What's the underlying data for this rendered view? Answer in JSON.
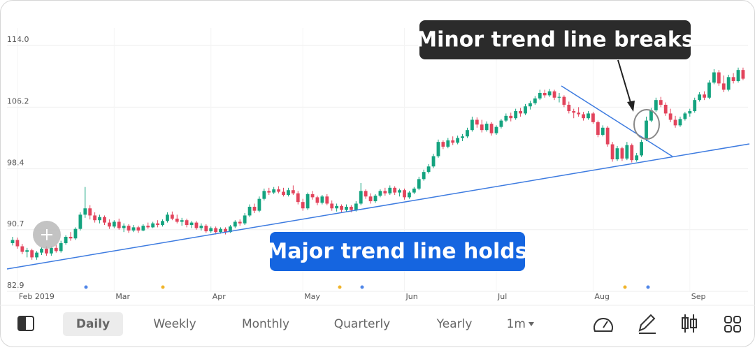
{
  "chart_data": {
    "type": "candlestick",
    "annotations": [
      "Minor trend line breaks",
      "Major trend line holds"
    ],
    "ylim": [
      82.2,
      117.1
    ],
    "yticks": [
      114.0,
      106.2,
      98.4,
      90.7,
      82.9
    ],
    "grid": true,
    "up_color": "#14a37f",
    "down_color": "#e2445c",
    "categories": [
      null,
      "Feb 2019",
      null,
      null,
      null,
      null,
      null,
      null,
      null,
      null,
      null,
      null,
      null,
      null,
      null,
      null,
      null,
      null,
      null,
      null,
      null,
      "Mar",
      null,
      null,
      null,
      null,
      null,
      null,
      null,
      null,
      null,
      null,
      null,
      null,
      null,
      null,
      null,
      null,
      null,
      null,
      null,
      "Apr",
      null,
      null,
      null,
      null,
      null,
      null,
      null,
      null,
      null,
      null,
      null,
      null,
      null,
      null,
      null,
      null,
      null,
      null,
      "May",
      null,
      null,
      null,
      null,
      null,
      null,
      null,
      null,
      null,
      null,
      null,
      null,
      null,
      null,
      null,
      null,
      null,
      null,
      null,
      null,
      "Jun",
      null,
      null,
      null,
      null,
      null,
      null,
      null,
      null,
      null,
      null,
      null,
      null,
      null,
      null,
      null,
      null,
      null,
      null,
      "Jul",
      null,
      null,
      null,
      null,
      null,
      null,
      null,
      null,
      null,
      null,
      null,
      null,
      null,
      null,
      null,
      null,
      null,
      null,
      null,
      "Aug",
      null,
      null,
      null,
      null,
      null,
      null,
      null,
      null,
      null,
      null,
      null,
      null,
      null,
      null,
      null,
      null,
      null,
      null,
      null,
      "Sep",
      null,
      null,
      null,
      null,
      null,
      null,
      null,
      null,
      null,
      null
    ],
    "ohlc": [
      [
        89.0,
        89.8,
        88.7,
        89.4
      ],
      [
        89.4,
        89.7,
        88.3,
        88.6
      ],
      [
        88.6,
        88.9,
        87.6,
        87.9
      ],
      [
        87.9,
        88.4,
        87.2,
        88.1
      ],
      [
        88.1,
        88.3,
        86.9,
        87.2
      ],
      [
        87.2,
        88.0,
        86.9,
        87.8
      ],
      [
        87.8,
        88.5,
        87.5,
        88.3
      ],
      [
        88.3,
        88.6,
        87.4,
        87.7
      ],
      [
        87.7,
        88.6,
        87.4,
        88.4
      ],
      [
        88.4,
        88.8,
        87.8,
        88.0
      ],
      [
        88.0,
        89.3,
        87.8,
        89.0
      ],
      [
        89.0,
        90.0,
        88.8,
        89.8
      ],
      [
        89.8,
        90.4,
        89.3,
        89.6
      ],
      [
        89.6,
        91.0,
        89.4,
        90.8
      ],
      [
        90.8,
        92.9,
        90.6,
        92.6
      ],
      [
        92.6,
        96.1,
        92.2,
        93.4
      ],
      [
        93.4,
        93.8,
        92.0,
        92.5
      ],
      [
        92.5,
        92.9,
        91.6,
        91.9
      ],
      [
        91.9,
        92.6,
        91.5,
        92.3
      ],
      [
        92.3,
        92.5,
        91.3,
        91.6
      ],
      [
        91.6,
        92.0,
        90.8,
        91.1
      ],
      [
        91.1,
        91.9,
        90.9,
        91.7
      ],
      [
        91.7,
        92.1,
        90.7,
        90.9
      ],
      [
        90.9,
        91.5,
        90.4,
        91.2
      ],
      [
        91.2,
        91.4,
        90.3,
        90.6
      ],
      [
        90.6,
        91.3,
        90.4,
        91.0
      ],
      [
        91.0,
        91.2,
        90.3,
        90.6
      ],
      [
        90.6,
        91.4,
        90.5,
        91.2
      ],
      [
        91.2,
        91.6,
        90.8,
        91.0
      ],
      [
        91.0,
        91.7,
        90.9,
        91.5
      ],
      [
        91.5,
        91.9,
        91.0,
        91.3
      ],
      [
        91.3,
        92.0,
        91.1,
        91.8
      ],
      [
        91.8,
        92.9,
        91.6,
        92.6
      ],
      [
        92.6,
        93.0,
        91.9,
        92.1
      ],
      [
        92.1,
        92.6,
        91.5,
        91.7
      ],
      [
        91.7,
        92.2,
        91.2,
        91.9
      ],
      [
        91.9,
        92.1,
        91.0,
        91.3
      ],
      [
        91.3,
        91.8,
        90.9,
        91.6
      ],
      [
        91.6,
        91.8,
        90.7,
        90.9
      ],
      [
        90.9,
        91.5,
        90.6,
        91.2
      ],
      [
        91.2,
        91.4,
        90.3,
        90.5
      ],
      [
        90.5,
        91.1,
        90.3,
        90.9
      ],
      [
        90.9,
        91.1,
        90.1,
        90.4
      ],
      [
        90.4,
        91.0,
        90.2,
        90.8
      ],
      [
        90.8,
        91.0,
        90.1,
        90.4
      ],
      [
        90.4,
        91.3,
        90.3,
        91.1
      ],
      [
        91.1,
        91.9,
        90.9,
        91.7
      ],
      [
        91.7,
        92.0,
        91.2,
        91.5
      ],
      [
        91.5,
        92.8,
        91.3,
        92.5
      ],
      [
        92.5,
        93.9,
        92.3,
        93.6
      ],
      [
        93.6,
        94.0,
        92.8,
        93.1
      ],
      [
        93.1,
        94.9,
        92.9,
        94.6
      ],
      [
        94.6,
        95.9,
        94.4,
        95.6
      ],
      [
        95.6,
        96.0,
        95.1,
        95.4
      ],
      [
        95.4,
        96.1,
        95.2,
        95.8
      ],
      [
        95.8,
        96.2,
        95.3,
        95.5
      ],
      [
        95.5,
        96.0,
        94.9,
        95.1
      ],
      [
        95.1,
        96.0,
        94.9,
        95.7
      ],
      [
        95.7,
        96.3,
        95.1,
        95.3
      ],
      [
        95.3,
        95.6,
        93.9,
        94.2
      ],
      [
        94.2,
        94.6,
        93.1,
        93.4
      ],
      [
        93.4,
        95.4,
        93.2,
        95.2
      ],
      [
        95.2,
        95.6,
        94.5,
        94.8
      ],
      [
        94.8,
        95.0,
        93.8,
        94.1
      ],
      [
        94.1,
        95.1,
        93.9,
        94.9
      ],
      [
        94.9,
        95.2,
        93.8,
        94.0
      ],
      [
        94.0,
        94.4,
        93.1,
        93.4
      ],
      [
        93.4,
        94.0,
        93.0,
        93.7
      ],
      [
        93.7,
        93.9,
        92.9,
        93.2
      ],
      [
        93.2,
        93.9,
        93.0,
        93.6
      ],
      [
        93.6,
        93.8,
        92.9,
        93.2
      ],
      [
        93.2,
        94.3,
        93.0,
        94.0
      ],
      [
        94.0,
        96.6,
        93.8,
        95.6
      ],
      [
        95.6,
        95.8,
        94.6,
        94.9
      ],
      [
        94.9,
        95.3,
        94.0,
        94.3
      ],
      [
        94.3,
        95.2,
        94.1,
        95.0
      ],
      [
        95.0,
        95.8,
        94.8,
        95.6
      ],
      [
        95.6,
        96.0,
        95.0,
        95.3
      ],
      [
        95.3,
        96.3,
        95.1,
        96.0
      ],
      [
        96.0,
        96.2,
        95.1,
        95.4
      ],
      [
        95.4,
        95.9,
        94.9,
        95.7
      ],
      [
        95.7,
        95.9,
        94.5,
        94.8
      ],
      [
        94.8,
        95.6,
        94.6,
        95.4
      ],
      [
        95.4,
        96.1,
        95.2,
        95.9
      ],
      [
        95.9,
        97.4,
        95.7,
        97.1
      ],
      [
        97.1,
        98.3,
        96.9,
        98.0
      ],
      [
        98.0,
        99.0,
        97.8,
        98.7
      ],
      [
        98.7,
        100.3,
        98.5,
        100.0
      ],
      [
        100.0,
        102.1,
        99.8,
        101.8
      ],
      [
        101.8,
        102.0,
        100.9,
        101.2
      ],
      [
        101.2,
        102.3,
        101.0,
        102.0
      ],
      [
        102.0,
        102.5,
        101.4,
        101.7
      ],
      [
        101.7,
        102.6,
        101.5,
        102.3
      ],
      [
        102.3,
        102.8,
        101.9,
        102.5
      ],
      [
        102.5,
        103.6,
        102.3,
        103.3
      ],
      [
        103.3,
        105.0,
        103.1,
        104.6
      ],
      [
        104.6,
        104.9,
        103.6,
        104.0
      ],
      [
        104.0,
        104.6,
        103.0,
        103.3
      ],
      [
        103.3,
        104.4,
        103.1,
        104.1
      ],
      [
        104.1,
        104.3,
        102.6,
        102.9
      ],
      [
        102.9,
        103.9,
        102.7,
        103.7
      ],
      [
        103.7,
        104.7,
        103.5,
        104.5
      ],
      [
        104.5,
        105.4,
        104.3,
        105.1
      ],
      [
        105.1,
        105.5,
        104.4,
        104.8
      ],
      [
        104.8,
        106.0,
        104.6,
        105.7
      ],
      [
        105.7,
        106.1,
        105.0,
        105.4
      ],
      [
        105.4,
        106.6,
        105.2,
        106.3
      ],
      [
        106.3,
        107.0,
        105.9,
        106.7
      ],
      [
        106.7,
        107.6,
        106.5,
        107.3
      ],
      [
        107.3,
        108.4,
        107.1,
        108.0
      ],
      [
        108.0,
        108.4,
        107.4,
        107.7
      ],
      [
        107.7,
        108.5,
        107.5,
        108.2
      ],
      [
        108.2,
        108.4,
        107.1,
        107.4
      ],
      [
        107.4,
        108.0,
        106.8,
        107.5
      ],
      [
        107.5,
        107.7,
        106.2,
        106.5
      ],
      [
        106.5,
        106.9,
        105.4,
        105.7
      ],
      [
        105.7,
        106.0,
        104.8,
        105.5
      ],
      [
        105.5,
        106.2,
        105.0,
        105.3
      ],
      [
        105.3,
        105.6,
        104.5,
        104.8
      ],
      [
        104.8,
        105.7,
        104.6,
        105.4
      ],
      [
        105.4,
        105.6,
        104.1,
        104.3
      ],
      [
        104.3,
        104.5,
        102.4,
        102.7
      ],
      [
        102.7,
        103.9,
        102.5,
        103.6
      ],
      [
        103.6,
        103.8,
        101.2,
        101.5
      ],
      [
        101.5,
        101.8,
        99.3,
        99.6
      ],
      [
        99.6,
        101.3,
        99.4,
        101.0
      ],
      [
        101.0,
        101.2,
        99.4,
        99.7
      ],
      [
        99.7,
        101.8,
        99.5,
        101.4
      ],
      [
        101.4,
        101.6,
        99.2,
        99.5
      ],
      [
        99.5,
        100.4,
        99.3,
        100.1
      ],
      [
        100.1,
        102.1,
        99.9,
        101.8
      ],
      [
        102.2,
        105.0,
        101.9,
        104.5
      ],
      [
        104.5,
        106.1,
        104.3,
        105.8
      ],
      [
        105.8,
        107.4,
        105.6,
        107.1
      ],
      [
        107.1,
        107.5,
        106.2,
        106.5
      ],
      [
        106.5,
        106.8,
        105.1,
        105.4
      ],
      [
        105.4,
        106.0,
        104.3,
        104.6
      ],
      [
        104.6,
        105.1,
        103.6,
        103.9
      ],
      [
        103.9,
        105.0,
        103.7,
        104.7
      ],
      [
        104.7,
        105.6,
        104.5,
        105.4
      ],
      [
        105.4,
        106.0,
        105.0,
        105.7
      ],
      [
        105.7,
        107.4,
        105.5,
        107.1
      ],
      [
        107.1,
        108.1,
        106.9,
        107.8
      ],
      [
        107.8,
        108.2,
        107.1,
        107.4
      ],
      [
        107.4,
        109.6,
        107.2,
        109.3
      ],
      [
        109.3,
        111.0,
        109.1,
        110.6
      ],
      [
        110.6,
        110.9,
        108.9,
        109.2
      ],
      [
        109.2,
        110.2,
        108.1,
        108.4
      ],
      [
        108.4,
        110.3,
        108.2,
        110.0
      ],
      [
        110.0,
        110.5,
        109.2,
        109.5
      ],
      [
        109.5,
        111.2,
        109.3,
        110.9
      ],
      [
        110.9,
        111.2,
        109.6,
        109.8
      ]
    ]
  },
  "toolbar": {
    "tabs": [
      "Daily",
      "Weekly",
      "Monthly",
      "Quarterly",
      "Yearly"
    ],
    "range": "1m"
  }
}
